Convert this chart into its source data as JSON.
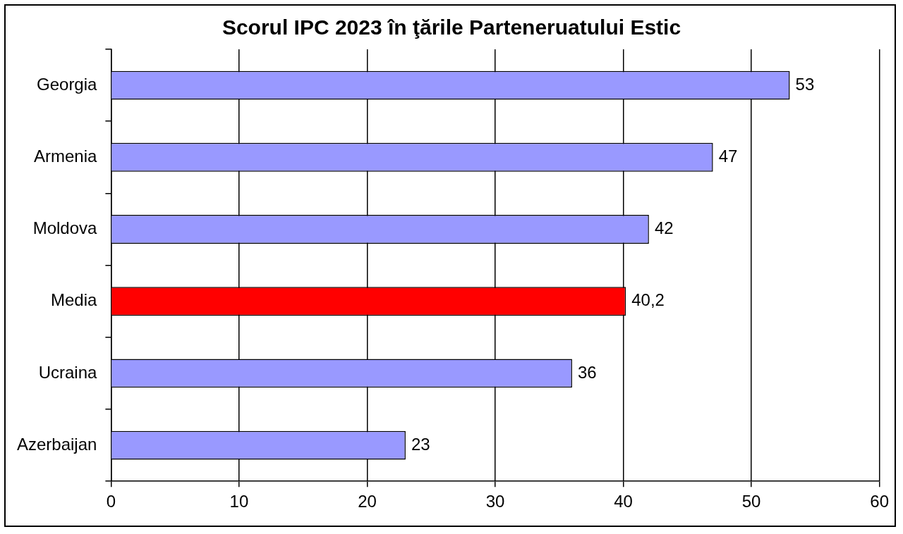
{
  "chart_data": {
    "type": "bar",
    "orientation": "horizontal",
    "title": "Scorul IPC 2023 în ţările Parteneruatului Estic",
    "categories": [
      "Georgia",
      "Armenia",
      "Moldova",
      "Media",
      "Ucraina",
      "Azerbaijan"
    ],
    "values": [
      53,
      47,
      42,
      40.2,
      36,
      23
    ],
    "colors": [
      "#9999ff",
      "#9999ff",
      "#9999ff",
      "#ff0000",
      "#9999ff",
      "#9999ff"
    ],
    "value_labels": [
      "53",
      "47",
      "42",
      "40,2",
      "36",
      "23"
    ],
    "xlim": [
      0,
      60
    ],
    "xticks": [
      0,
      10,
      20,
      30,
      40,
      50,
      60
    ],
    "grid": "x",
    "legend": false
  }
}
